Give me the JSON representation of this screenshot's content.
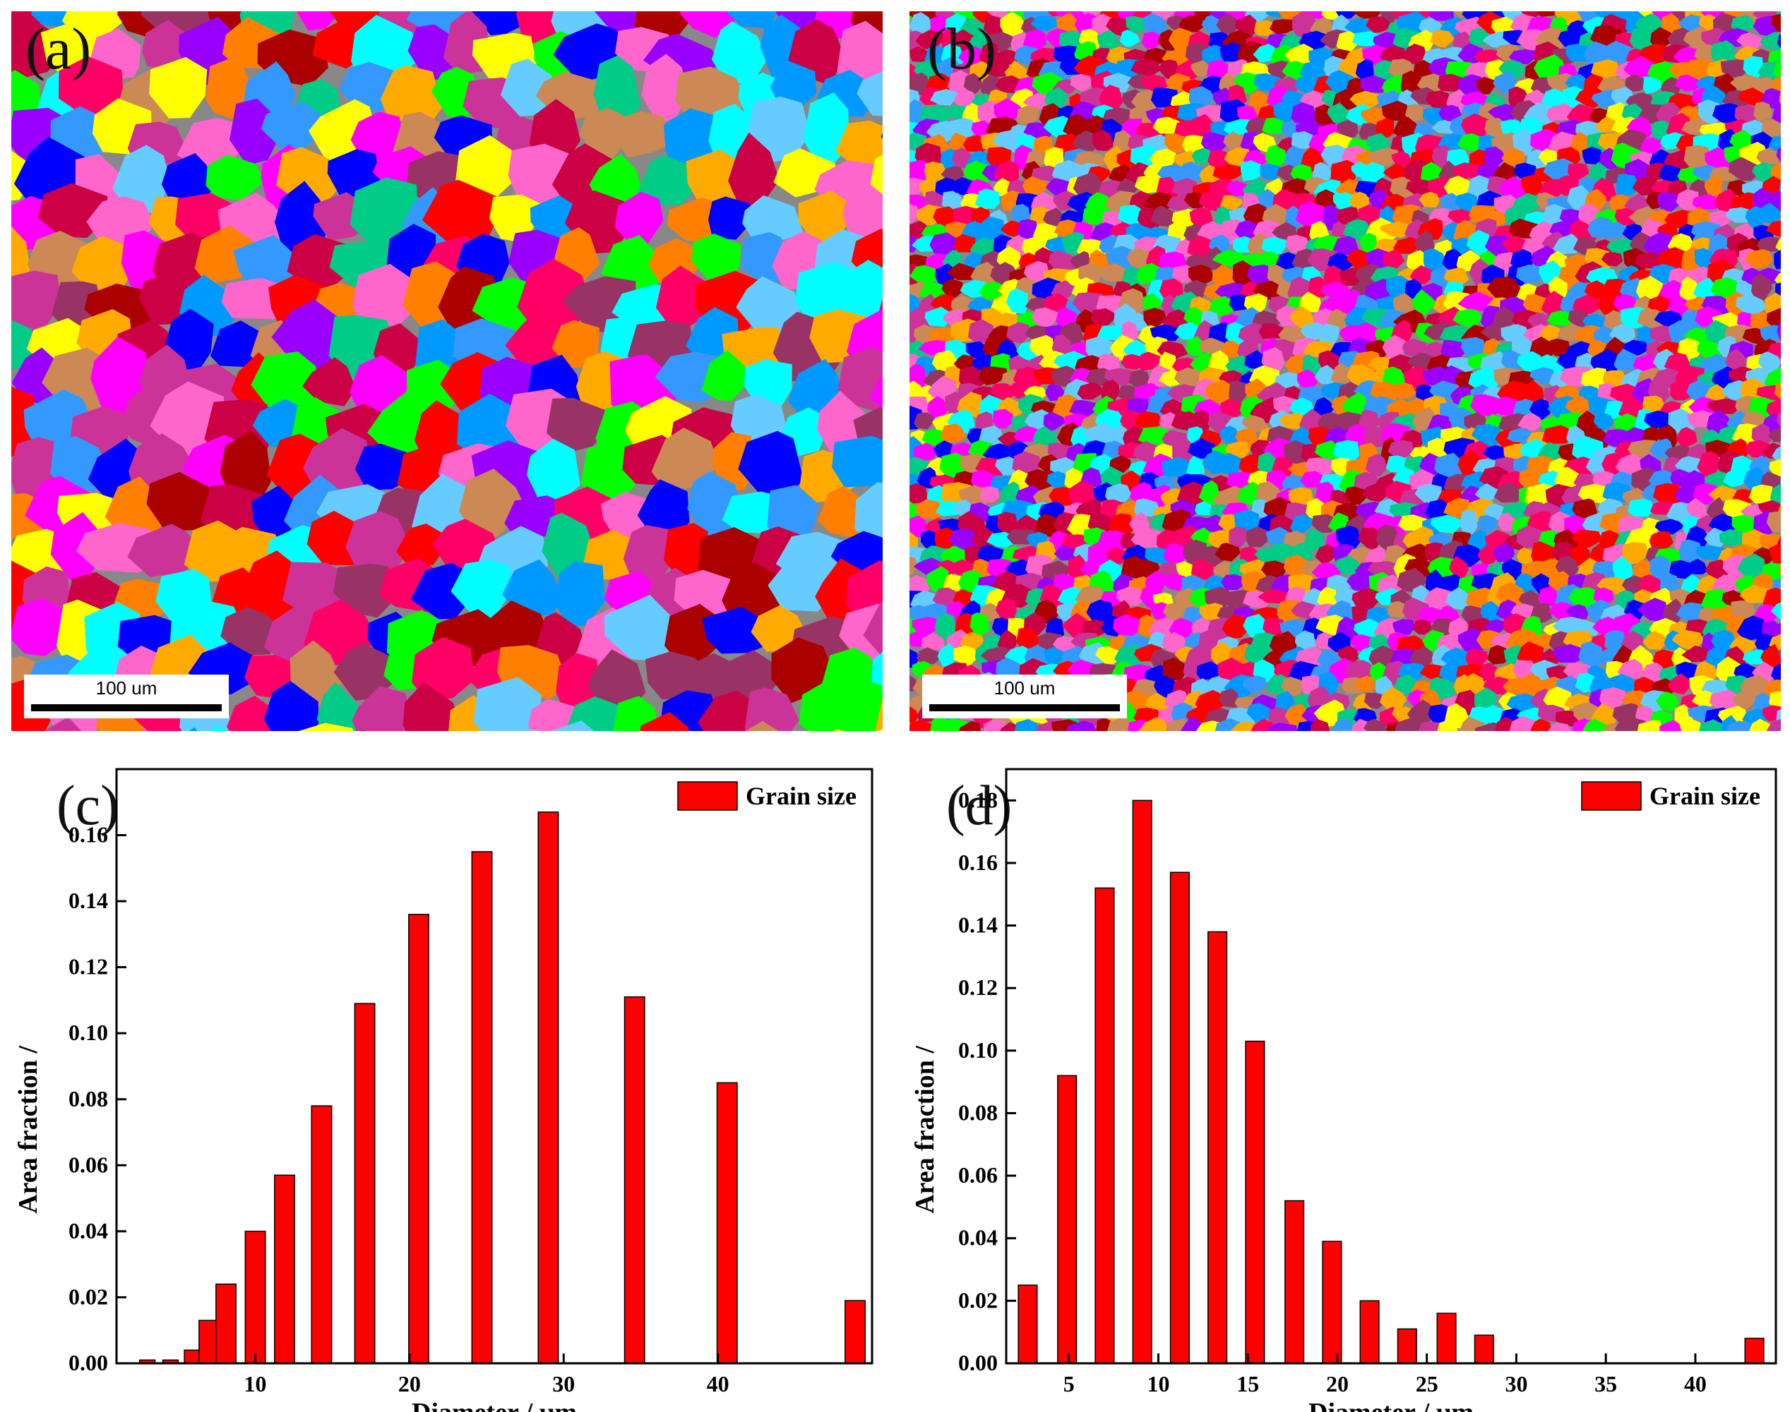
{
  "panels": {
    "a": {
      "label": "(a)",
      "scale_label": "100 um"
    },
    "b": {
      "label": "(b)",
      "scale_label": "100 um"
    }
  },
  "colors": {
    "bar": "#ff0000",
    "map_palette": [
      "#ff0000",
      "#0000ff",
      "#00ffff",
      "#ffff00",
      "#ff00ff",
      "#00ff00",
      "#ff8000",
      "#9900ff",
      "#ff0066",
      "#cc0044",
      "#3399ff",
      "#cc8855",
      "#00cc88",
      "#993366",
      "#ff66cc",
      "#66ccff",
      "#ffaa00",
      "#aa0000",
      "#0099ff",
      "#cc3399"
    ]
  },
  "chart_data": [
    {
      "id": "c",
      "panel_label": "(c)",
      "type": "bar",
      "title": "",
      "xlabel": "Diameter / μm",
      "ylabel": "Area fraction /",
      "xlim": [
        1,
        50
      ],
      "ylim": [
        0,
        0.18
      ],
      "xticks": [
        10,
        20,
        30,
        40
      ],
      "yticks": [
        0.0,
        0.02,
        0.04,
        0.06,
        0.08,
        0.1,
        0.12,
        0.14,
        0.16
      ],
      "ytick_labels": [
        "0.00",
        "0.02",
        "0.04",
        "0.06",
        "0.08",
        "0.10",
        "0.12",
        "0.14",
        "0.16"
      ],
      "legend": {
        "label": "Grain size",
        "position": "top-right"
      },
      "series": [
        {
          "name": "Grain size",
          "x": [
            3.0,
            4.5,
            5.9,
            7.0,
            8.1,
            10.0,
            11.9,
            14.3,
            17.1,
            20.6,
            24.7,
            29.0,
            34.6,
            40.6,
            48.9
          ],
          "widths": [
            1.0,
            1.0,
            1.0,
            1.3,
            1.3,
            1.3,
            1.3,
            1.3,
            1.3,
            1.3,
            1.3,
            1.3,
            1.3,
            1.3,
            1.3
          ],
          "values": [
            0.001,
            0.001,
            0.004,
            0.013,
            0.024,
            0.04,
            0.057,
            0.078,
            0.109,
            0.136,
            0.155,
            0.167,
            0.111,
            0.085,
            0.019
          ]
        }
      ]
    },
    {
      "id": "d",
      "panel_label": "(d)",
      "type": "bar",
      "title": "",
      "xlabel": "Diameter / μm",
      "ylabel": "Area fraction /",
      "xlim": [
        1.5,
        44.5
      ],
      "ylim": [
        0,
        0.19
      ],
      "xticks": [
        5,
        10,
        15,
        20,
        25,
        30,
        35,
        40
      ],
      "yticks": [
        0.0,
        0.02,
        0.04,
        0.06,
        0.08,
        0.1,
        0.12,
        0.14,
        0.16,
        0.18
      ],
      "ytick_labels": [
        "0.00",
        "0.02",
        "0.04",
        "0.06",
        "0.08",
        "0.10",
        "0.12",
        "0.14",
        "0.16",
        "0.18"
      ],
      "legend": {
        "label": "Grain size",
        "position": "top-right"
      },
      "series": [
        {
          "name": "Grain size",
          "x": [
            2.7,
            4.9,
            7.0,
            9.1,
            11.2,
            13.3,
            15.4,
            17.6,
            19.7,
            21.8,
            23.9,
            26.1,
            28.2,
            43.3
          ],
          "widths": [
            1.05,
            1.05,
            1.05,
            1.05,
            1.05,
            1.05,
            1.05,
            1.05,
            1.05,
            1.05,
            1.05,
            1.05,
            1.05,
            1.05
          ],
          "values": [
            0.025,
            0.092,
            0.152,
            0.18,
            0.157,
            0.138,
            0.103,
            0.052,
            0.039,
            0.02,
            0.011,
            0.016,
            0.009,
            0.008
          ]
        }
      ]
    }
  ]
}
